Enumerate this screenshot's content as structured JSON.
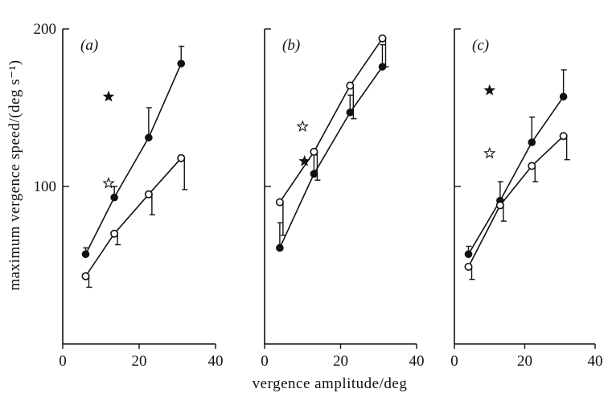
{
  "chart_data": {
    "type": "scatter",
    "xlabel": "vergence amplitude/deg",
    "ylabel": "maximum vergence speed/(deg s⁻¹)",
    "xlim": [
      0,
      40
    ],
    "ylim": [
      0,
      200
    ],
    "x_ticks": [
      "0",
      "20",
      "40"
    ],
    "y_ticks": [
      "100",
      "200"
    ],
    "panels": [
      {
        "label": "(a)",
        "series": [
          {
            "marker": "filled-circle",
            "points": [
              {
                "x": 6,
                "y": 57,
                "err": 4
              },
              {
                "x": 13.5,
                "y": 93,
                "err": 7
              },
              {
                "x": 22.5,
                "y": 131,
                "err": 19
              },
              {
                "x": 31,
                "y": 178,
                "err": 11
              }
            ]
          },
          {
            "marker": "open-circle",
            "points": [
              {
                "x": 6,
                "y": 43,
                "err": 7
              },
              {
                "x": 13.5,
                "y": 70,
                "err": 7
              },
              {
                "x": 22.5,
                "y": 95,
                "err": 13
              },
              {
                "x": 31,
                "y": 118,
                "err": 20
              }
            ]
          }
        ],
        "stars": [
          {
            "marker": "filled-star",
            "x": 12,
            "y": 157
          },
          {
            "marker": "open-star",
            "x": 12,
            "y": 102
          }
        ]
      },
      {
        "label": "(b)",
        "series": [
          {
            "marker": "filled-circle",
            "points": [
              {
                "x": 4,
                "y": 61,
                "err": 16
              },
              {
                "x": 13,
                "y": 108,
                "err": 12
              },
              {
                "x": 22.5,
                "y": 147,
                "err": 11
              },
              {
                "x": 31,
                "y": 176,
                "err": 14
              }
            ]
          },
          {
            "marker": "open-circle",
            "points": [
              {
                "x": 4,
                "y": 90,
                "err": 21
              },
              {
                "x": 13,
                "y": 122,
                "err": 18
              },
              {
                "x": 22.5,
                "y": 164,
                "err": 21
              },
              {
                "x": 31,
                "y": 194,
                "err": 18
              }
            ]
          }
        ],
        "stars": [
          {
            "marker": "open-star",
            "x": 10,
            "y": 138
          },
          {
            "marker": "filled-star",
            "x": 10.5,
            "y": 116
          }
        ]
      },
      {
        "label": "(c)",
        "series": [
          {
            "marker": "filled-circle",
            "points": [
              {
                "x": 4,
                "y": 57,
                "err": 5
              },
              {
                "x": 13,
                "y": 91,
                "err": 12
              },
              {
                "x": 22,
                "y": 128,
                "err": 16
              },
              {
                "x": 31,
                "y": 157,
                "err": 17
              }
            ]
          },
          {
            "marker": "open-circle",
            "points": [
              {
                "x": 4,
                "y": 49,
                "err": 8
              },
              {
                "x": 13,
                "y": 88,
                "err": 10
              },
              {
                "x": 22,
                "y": 113,
                "err": 10
              },
              {
                "x": 31,
                "y": 132,
                "err": 15
              }
            ]
          }
        ],
        "stars": [
          {
            "marker": "filled-star",
            "x": 10,
            "y": 161
          },
          {
            "marker": "open-star",
            "x": 10,
            "y": 121
          }
        ]
      }
    ]
  }
}
